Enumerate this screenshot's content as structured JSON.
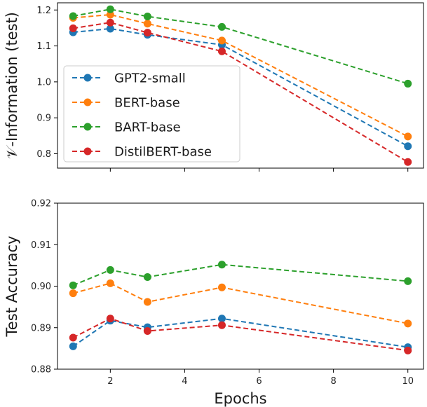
{
  "chart_data": [
    {
      "type": "line",
      "xlabel": "",
      "ylabel": "𝒱-Information (test)",
      "xlim": [
        0.58,
        10.42
      ],
      "ylim": [
        0.76,
        1.22
      ],
      "x_ticks": [
        2,
        4,
        6,
        8,
        10
      ],
      "x_tick_labels": [
        "",
        "",
        "",
        "",
        ""
      ],
      "y_ticks": [
        0.8,
        0.9,
        1.0,
        1.1,
        1.2
      ],
      "y_tick_labels": [
        "0.8",
        "0.9",
        "1.0",
        "1.1",
        "1.2"
      ],
      "grid": false,
      "legend_position": "center-left",
      "x": [
        1,
        2,
        3,
        5,
        10
      ],
      "series": [
        {
          "name": "GPT2-small",
          "color": "#1f77b4",
          "values": [
            1.138,
            1.148,
            1.131,
            1.103,
            0.821
          ]
        },
        {
          "name": "BERT-base",
          "color": "#ff7f0e",
          "values": [
            1.178,
            1.187,
            1.162,
            1.115,
            0.848
          ]
        },
        {
          "name": "BART-base",
          "color": "#2ca02c",
          "values": [
            1.183,
            1.202,
            1.182,
            1.153,
            0.995
          ]
        },
        {
          "name": "DistilBERT-base",
          "color": "#d62728",
          "values": [
            1.149,
            1.165,
            1.137,
            1.085,
            0.777
          ]
        }
      ]
    },
    {
      "type": "line",
      "xlabel": "Epochs",
      "ylabel": "Test Accuracy",
      "xlim": [
        0.58,
        10.42
      ],
      "ylim": [
        0.88,
        0.92
      ],
      "x_ticks": [
        2,
        4,
        6,
        8,
        10
      ],
      "x_tick_labels": [
        "2",
        "4",
        "6",
        "8",
        "10"
      ],
      "y_ticks": [
        0.88,
        0.89,
        0.9,
        0.91,
        0.92
      ],
      "y_tick_labels": [
        "0.88",
        "0.89",
        "0.90",
        "0.91",
        "0.92"
      ],
      "grid": false,
      "x": [
        1,
        2,
        3,
        5,
        10
      ],
      "series": [
        {
          "name": "GPT2-small",
          "color": "#1f77b4",
          "values": [
            0.8855,
            0.8917,
            0.8901,
            0.8922,
            0.8853
          ]
        },
        {
          "name": "BERT-base",
          "color": "#ff7f0e",
          "values": [
            0.8983,
            0.9007,
            0.8962,
            0.8997,
            0.891
          ]
        },
        {
          "name": "BART-base",
          "color": "#2ca02c",
          "values": [
            0.9002,
            0.9039,
            0.9022,
            0.9052,
            0.9012
          ]
        },
        {
          "name": "DistilBERT-base",
          "color": "#d62728",
          "values": [
            0.8876,
            0.8922,
            0.8892,
            0.8906,
            0.8845
          ]
        }
      ]
    }
  ]
}
